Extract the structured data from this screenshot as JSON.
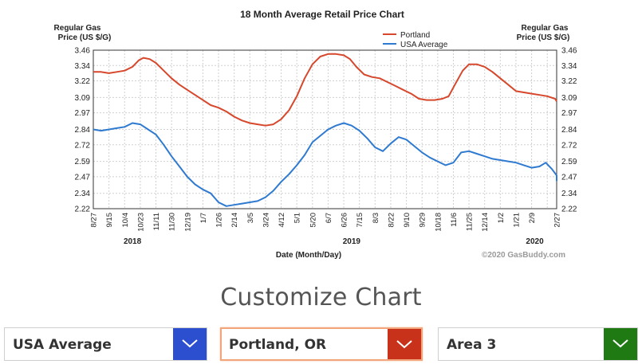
{
  "chart_data": {
    "type": "line",
    "title": "18 Month Average Retail Price Chart",
    "ylabel_left": [
      "Regular Gas",
      "Price (US $/G)"
    ],
    "ylabel_right": [
      "Regular Gas",
      "Price (US $/G)"
    ],
    "xlabel": "Date (Month/Day)",
    "credit": "©2020 GasBuddy.com",
    "y_ticks": [
      "3.46",
      "3.34",
      "3.22",
      "3.09",
      "2.97",
      "2.84",
      "2.72",
      "2.59",
      "2.47",
      "2.34",
      "2.22"
    ],
    "ylim": [
      2.22,
      3.46
    ],
    "x_ticks": [
      "8/27",
      "9/15",
      "10/4",
      "10/23",
      "11/11",
      "11/30",
      "12/19",
      "1/7",
      "1/26",
      "2/14",
      "3/5",
      "3/24",
      "4/12",
      "5/1",
      "5/20",
      "6/7",
      "6/26",
      "7/15",
      "8/3",
      "8/22",
      "9/10",
      "9/29",
      "10/18",
      "11/6",
      "11/25",
      "12/14",
      "1/2",
      "1/21",
      "2/9",
      "2/27"
    ],
    "year_labels": [
      {
        "label": "2018",
        "at_tick": 2.5
      },
      {
        "label": "2019",
        "at_tick": 16.5
      },
      {
        "label": "2020",
        "at_tick": 28.2
      }
    ],
    "legend": {
      "position": "top-right",
      "entries": [
        "Portland",
        "USA Average"
      ]
    },
    "series": [
      {
        "name": "Portland",
        "color": "#d6472b",
        "points": [
          [
            0,
            3.29
          ],
          [
            0.5,
            3.29
          ],
          [
            1,
            3.28
          ],
          [
            1.5,
            3.29
          ],
          [
            2,
            3.3
          ],
          [
            2.5,
            3.33
          ],
          [
            2.9,
            3.38
          ],
          [
            3.2,
            3.4
          ],
          [
            3.6,
            3.39
          ],
          [
            4,
            3.36
          ],
          [
            4.5,
            3.3
          ],
          [
            5,
            3.24
          ],
          [
            5.5,
            3.19
          ],
          [
            6,
            3.15
          ],
          [
            6.5,
            3.11
          ],
          [
            7,
            3.07
          ],
          [
            7.5,
            3.03
          ],
          [
            8,
            3.01
          ],
          [
            8.5,
            2.98
          ],
          [
            9,
            2.94
          ],
          [
            9.5,
            2.91
          ],
          [
            10,
            2.89
          ],
          [
            10.5,
            2.88
          ],
          [
            11,
            2.87
          ],
          [
            11.5,
            2.88
          ],
          [
            12,
            2.92
          ],
          [
            12.5,
            2.99
          ],
          [
            13,
            3.1
          ],
          [
            13.5,
            3.24
          ],
          [
            14,
            3.35
          ],
          [
            14.5,
            3.41
          ],
          [
            15,
            3.43
          ],
          [
            15.5,
            3.43
          ],
          [
            16,
            3.42
          ],
          [
            16.4,
            3.39
          ],
          [
            16.8,
            3.33
          ],
          [
            17.3,
            3.27
          ],
          [
            17.8,
            3.25
          ],
          [
            18.3,
            3.24
          ],
          [
            18.8,
            3.21
          ],
          [
            19.3,
            3.18
          ],
          [
            19.8,
            3.15
          ],
          [
            20.3,
            3.12
          ],
          [
            20.8,
            3.08
          ],
          [
            21.3,
            3.07
          ],
          [
            21.8,
            3.07
          ],
          [
            22.3,
            3.08
          ],
          [
            22.7,
            3.1
          ],
          [
            23.1,
            3.19
          ],
          [
            23.6,
            3.3
          ],
          [
            24,
            3.35
          ],
          [
            24.5,
            3.35
          ],
          [
            25,
            3.33
          ],
          [
            25.5,
            3.29
          ],
          [
            26,
            3.24
          ],
          [
            26.5,
            3.19
          ],
          [
            27,
            3.14
          ],
          [
            27.5,
            3.13
          ],
          [
            28,
            3.12
          ],
          [
            28.5,
            3.11
          ],
          [
            29,
            3.1
          ],
          [
            29.5,
            3.08
          ],
          [
            30,
            3.06
          ]
        ]
      },
      {
        "name": "USA Average",
        "color": "#2f7ad1",
        "points": [
          [
            0,
            2.84
          ],
          [
            0.5,
            2.83
          ],
          [
            1,
            2.84
          ],
          [
            1.5,
            2.85
          ],
          [
            2,
            2.86
          ],
          [
            2.5,
            2.89
          ],
          [
            3,
            2.88
          ],
          [
            3.5,
            2.84
          ],
          [
            4,
            2.8
          ],
          [
            4.5,
            2.72
          ],
          [
            5,
            2.63
          ],
          [
            5.5,
            2.55
          ],
          [
            6,
            2.47
          ],
          [
            6.5,
            2.41
          ],
          [
            7,
            2.37
          ],
          [
            7.5,
            2.34
          ],
          [
            8,
            2.27
          ],
          [
            8.5,
            2.24
          ],
          [
            9,
            2.25
          ],
          [
            9.5,
            2.26
          ],
          [
            10,
            2.27
          ],
          [
            10.5,
            2.28
          ],
          [
            11,
            2.31
          ],
          [
            11.5,
            2.36
          ],
          [
            12,
            2.43
          ],
          [
            12.5,
            2.49
          ],
          [
            13,
            2.56
          ],
          [
            13.5,
            2.64
          ],
          [
            14,
            2.74
          ],
          [
            14.5,
            2.79
          ],
          [
            15,
            2.84
          ],
          [
            15.5,
            2.87
          ],
          [
            16,
            2.89
          ],
          [
            16.5,
            2.87
          ],
          [
            17,
            2.83
          ],
          [
            17.5,
            2.77
          ],
          [
            18,
            2.7
          ],
          [
            18.5,
            2.67
          ],
          [
            19,
            2.73
          ],
          [
            19.5,
            2.78
          ],
          [
            20,
            2.76
          ],
          [
            20.5,
            2.71
          ],
          [
            21,
            2.66
          ],
          [
            21.5,
            2.62
          ],
          [
            22,
            2.59
          ],
          [
            22.5,
            2.56
          ],
          [
            23,
            2.58
          ],
          [
            23.5,
            2.66
          ],
          [
            24,
            2.67
          ],
          [
            24.5,
            2.65
          ],
          [
            25,
            2.63
          ],
          [
            25.5,
            2.61
          ],
          [
            26,
            2.6
          ],
          [
            26.5,
            2.59
          ],
          [
            27,
            2.58
          ],
          [
            27.5,
            2.56
          ],
          [
            28,
            2.54
          ],
          [
            28.5,
            2.55
          ],
          [
            28.9,
            2.58
          ],
          [
            29.3,
            2.53
          ],
          [
            29.7,
            2.48
          ],
          [
            30,
            2.44
          ],
          [
            30.3,
            2.45
          ],
          [
            30.6,
            2.47
          ]
        ]
      }
    ]
  },
  "customize": {
    "title": "Customize Chart",
    "selects": [
      {
        "value": "USA Average",
        "color": "#2b4fcf"
      },
      {
        "value": "Portland, OR",
        "color": "#c9321a"
      },
      {
        "value": "Area 3",
        "color": "#1f7a14"
      }
    ]
  }
}
